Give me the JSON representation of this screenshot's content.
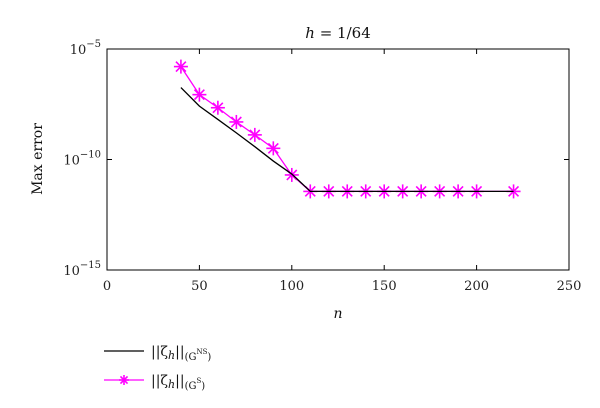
{
  "chart_data": {
    "type": "line",
    "title_var": "h",
    "title_value": "1/64",
    "xlabel": "n",
    "ylabel": "Max error",
    "yscale": "log",
    "xlim": [
      0,
      250
    ],
    "ylim": [
      1e-15,
      1e-05
    ],
    "xticks": [
      0,
      50,
      100,
      150,
      200,
      250
    ],
    "xtick_labels": [
      "0",
      "50",
      "100",
      "150",
      "200",
      "250"
    ],
    "yticks": [
      {
        "value": 1e-05,
        "base": "10",
        "exp": "−5"
      },
      {
        "value": 1e-10,
        "base": "10",
        "exp": "−10"
      },
      {
        "value": 1e-15,
        "base": "10",
        "exp": "−15"
      }
    ],
    "grid": false,
    "legend_position": "below-left",
    "series": [
      {
        "legend_main": "||ζ",
        "legend_sub": "h",
        "legend_close": "||",
        "legend_norm_sub": "(G",
        "legend_norm_sup": "NS",
        "legend_norm_end": ")",
        "color": "#000000",
        "marker": "none",
        "x": [
          40,
          50,
          60,
          70,
          80,
          90,
          100,
          110,
          120,
          130,
          140,
          150,
          160,
          170,
          180,
          190,
          200,
          220
        ],
        "y": [
          1.8e-07,
          2.6e-08,
          6.5e-09,
          1.6e-09,
          3.8e-10,
          8.5e-11,
          2.2e-11,
          3.6e-12,
          3.6e-12,
          3.6e-12,
          3.6e-12,
          3.6e-12,
          3.6e-12,
          3.6e-12,
          3.6e-12,
          3.6e-12,
          3.6e-12,
          3.6e-12
        ]
      },
      {
        "legend_main": "||ζ",
        "legend_sub": "h",
        "legend_close": "||",
        "legend_norm_sub": "(G",
        "legend_norm_sup": "S",
        "legend_norm_end": ")",
        "color": "#ff00ff",
        "marker": "asterisk",
        "x": [
          40,
          50,
          60,
          70,
          80,
          90,
          100,
          110,
          120,
          130,
          140,
          150,
          160,
          170,
          180,
          190,
          200,
          220
        ],
        "y": [
          1.6e-06,
          8.6e-08,
          2.2e-08,
          5e-09,
          1.3e-09,
          3.2e-10,
          2e-11,
          3.6e-12,
          3.6e-12,
          3.6e-12,
          3.6e-12,
          3.6e-12,
          3.6e-12,
          3.6e-12,
          3.6e-12,
          3.6e-12,
          3.6e-12,
          3.6e-12
        ]
      }
    ]
  }
}
